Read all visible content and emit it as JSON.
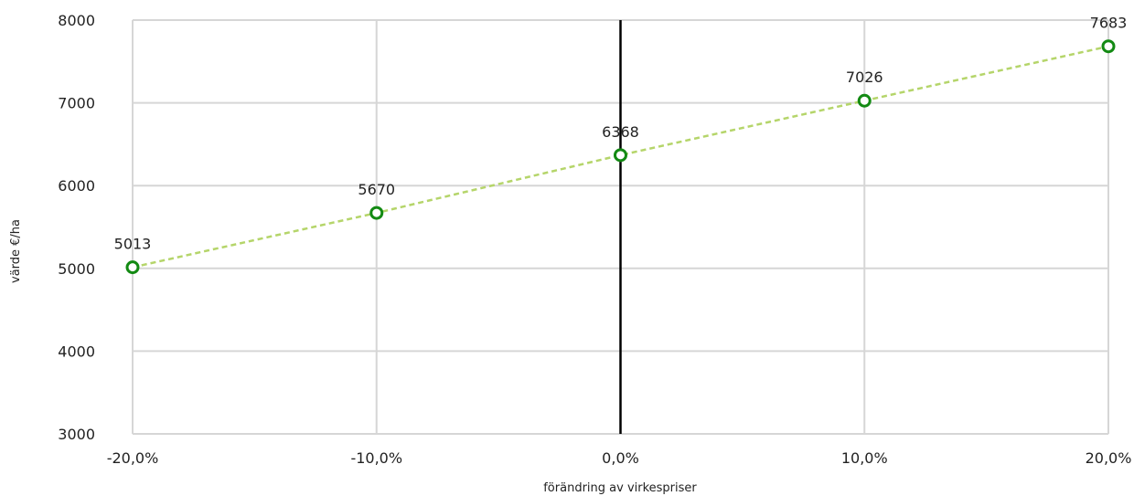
{
  "chart_data": {
    "type": "line",
    "title": "",
    "xlabel": "förändring av virkespriser",
    "ylabel": "värde €/ha",
    "categories": [
      "-20,0%",
      "-10,0%",
      "0,0%",
      "10,0%",
      "20,0%"
    ],
    "x": [
      -20,
      -10,
      0,
      10,
      20
    ],
    "series": [
      {
        "values": [
          5013,
          5670,
          6368,
          7026,
          7683
        ],
        "data_labels": [
          "5013",
          "5670",
          "6368",
          "7026",
          "7683"
        ],
        "line_color": "#b5d56a",
        "line_style": "dashed",
        "marker": "open-circle",
        "marker_color": "#138a13"
      }
    ],
    "xlim": [
      -20,
      20
    ],
    "ylim": [
      3000,
      8000
    ],
    "y_ticks": [
      3000,
      4000,
      5000,
      6000,
      7000,
      8000
    ],
    "y_tick_labels": [
      "3000",
      "4000",
      "5000",
      "6000",
      "7000",
      "8000"
    ],
    "reference_line": {
      "x": 0,
      "color": "#000000"
    },
    "grid": true,
    "grid_color": "#d6d6d6",
    "legend": "none"
  }
}
